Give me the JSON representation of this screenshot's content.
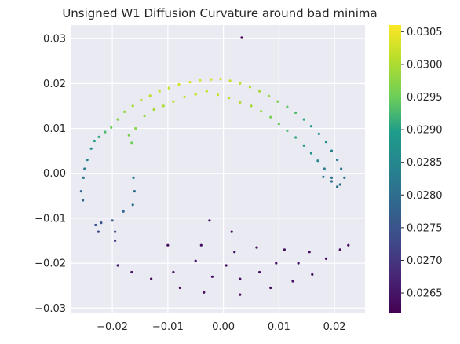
{
  "chart_data": {
    "type": "scatter",
    "title": "Unsigned W1 Diffusion Curvature around bad minima",
    "xlabel": "",
    "ylabel": "",
    "xlim": [
      -0.0275,
      0.0255
    ],
    "ylim": [
      -0.031,
      0.033
    ],
    "x_ticks": [
      -0.02,
      -0.01,
      0.0,
      0.01,
      0.02
    ],
    "x_tick_labels": [
      "−0.02",
      "−0.01",
      "0.00",
      "0.01",
      "0.02"
    ],
    "y_ticks": [
      -0.03,
      -0.02,
      -0.01,
      0.0,
      0.01,
      0.02,
      0.03
    ],
    "y_tick_labels": [
      "−0.03",
      "−0.02",
      "−0.01",
      "0.00",
      "0.01",
      "0.02",
      "0.03"
    ],
    "grid": true,
    "background": "#eaeaf2",
    "colormap": "viridis",
    "colorbar": {
      "range": [
        0.0262,
        0.0306
      ],
      "ticks": [
        0.0265,
        0.027,
        0.0275,
        0.028,
        0.0285,
        0.029,
        0.0295,
        0.03,
        0.0305
      ],
      "tick_labels": [
        "0.0265",
        "0.0270",
        "0.0275",
        "0.0280",
        "0.0285",
        "0.0290",
        "0.0295",
        "0.0300",
        "0.0305"
      ]
    },
    "points": [
      [
        -0.0238,
        0.0055,
        0.0285
      ],
      [
        -0.0232,
        0.0072,
        0.0289
      ],
      [
        -0.0224,
        0.0081,
        0.0291
      ],
      [
        -0.0213,
        0.0092,
        0.0293
      ],
      [
        -0.0202,
        0.0102,
        0.0295
      ],
      [
        -0.019,
        0.012,
        0.0297
      ],
      [
        -0.0178,
        0.0137,
        0.0298
      ],
      [
        -0.0163,
        0.015,
        0.0299
      ],
      [
        -0.0148,
        0.0163,
        0.03
      ],
      [
        -0.0132,
        0.0173,
        0.0301
      ],
      [
        -0.0115,
        0.0183,
        0.0302
      ],
      [
        -0.0098,
        0.019,
        0.0302
      ],
      [
        -0.008,
        0.0198,
        0.0303
      ],
      [
        -0.006,
        0.0203,
        0.0303
      ],
      [
        -0.0042,
        0.0207,
        0.0303
      ],
      [
        -0.0022,
        0.0209,
        0.0303
      ],
      [
        -0.0005,
        0.021,
        0.0303
      ],
      [
        0.0012,
        0.0206,
        0.0302
      ],
      [
        0.003,
        0.02,
        0.0301
      ],
      [
        0.0048,
        0.0192,
        0.03
      ],
      [
        0.0065,
        0.0183,
        0.0299
      ],
      [
        0.0082,
        0.0172,
        0.0298
      ],
      [
        0.0098,
        0.016,
        0.0296
      ],
      [
        0.0115,
        0.0148,
        0.0294
      ],
      [
        0.013,
        0.0135,
        0.0293
      ],
      [
        0.0145,
        0.012,
        0.0291
      ],
      [
        0.0158,
        0.0105,
        0.0289
      ],
      [
        0.0172,
        0.0088,
        0.0287
      ],
      [
        0.0185,
        0.007,
        0.0286
      ],
      [
        0.0195,
        0.005,
        0.0284
      ],
      [
        0.0205,
        0.003,
        0.0283
      ],
      [
        0.0212,
        0.001,
        0.0282
      ],
      [
        0.0218,
        -0.001,
        0.0281
      ],
      [
        0.021,
        -0.0025,
        0.028
      ],
      [
        0.0195,
        -0.0018,
        0.028
      ],
      [
        0.018,
        -0.0008,
        0.0281
      ],
      [
        -0.017,
        0.0085,
        0.0296
      ],
      [
        -0.0165,
        0.0068,
        0.0295
      ],
      [
        -0.0158,
        0.01,
        0.0297
      ],
      [
        -0.0142,
        0.0128,
        0.0298
      ],
      [
        -0.0125,
        0.0142,
        0.0299
      ],
      [
        -0.0108,
        0.015,
        0.03
      ],
      [
        -0.009,
        0.016,
        0.0301
      ],
      [
        -0.007,
        0.017,
        0.0302
      ],
      [
        -0.005,
        0.0176,
        0.0302
      ],
      [
        -0.003,
        0.0183,
        0.0302
      ],
      [
        -0.001,
        0.0175,
        0.0302
      ],
      [
        0.001,
        0.0168,
        0.0301
      ],
      [
        0.003,
        0.0158,
        0.03
      ],
      [
        0.005,
        0.015,
        0.0299
      ],
      [
        0.0068,
        0.0138,
        0.0298
      ],
      [
        0.0085,
        0.0125,
        0.0296
      ],
      [
        0.01,
        0.011,
        0.0295
      ],
      [
        0.0115,
        0.0095,
        0.0293
      ],
      [
        0.013,
        0.008,
        0.0291
      ],
      [
        0.0145,
        0.0062,
        0.0289
      ],
      [
        0.0158,
        0.0045,
        0.0287
      ],
      [
        0.017,
        0.0028,
        0.0285
      ],
      [
        0.0182,
        0.001,
        0.0283
      ],
      [
        0.0195,
        -0.001,
        0.0281
      ],
      [
        0.0205,
        -0.003,
        0.028
      ],
      [
        -0.025,
        0.001,
        0.0283
      ],
      [
        -0.0245,
        0.003,
        0.0284
      ],
      [
        -0.0252,
        -0.001,
        0.0282
      ],
      [
        -0.0256,
        -0.004,
        0.0279
      ],
      [
        -0.0253,
        -0.006,
        0.0278
      ],
      [
        -0.0162,
        -0.001,
        0.0283
      ],
      [
        -0.016,
        -0.004,
        0.028
      ],
      [
        -0.0163,
        -0.007,
        0.0279
      ],
      [
        -0.018,
        -0.0085,
        0.0278
      ],
      [
        -0.02,
        -0.0105,
        0.0276
      ],
      [
        -0.022,
        -0.011,
        0.0275
      ],
      [
        -0.023,
        -0.0115,
        0.0274
      ],
      [
        -0.0225,
        -0.013,
        0.0273
      ],
      [
        -0.0195,
        -0.013,
        0.0274
      ],
      [
        -0.0195,
        -0.015,
        0.0272
      ],
      [
        0.0033,
        0.0302,
        0.0262
      ],
      [
        -0.019,
        -0.0205,
        0.0265
      ],
      [
        -0.0165,
        -0.022,
        0.0265
      ],
      [
        -0.013,
        -0.0235,
        0.0264
      ],
      [
        -0.01,
        -0.016,
        0.0264
      ],
      [
        -0.009,
        -0.022,
        0.0264
      ],
      [
        -0.0078,
        -0.0255,
        0.0264
      ],
      [
        -0.005,
        -0.0195,
        0.0264
      ],
      [
        -0.004,
        -0.016,
        0.0264
      ],
      [
        -0.0035,
        -0.0265,
        0.0264
      ],
      [
        -0.0025,
        -0.0105,
        0.0264
      ],
      [
        -0.002,
        -0.023,
        0.0264
      ],
      [
        0.0005,
        -0.0205,
        0.0264
      ],
      [
        0.0015,
        -0.013,
        0.0264
      ],
      [
        0.002,
        -0.0175,
        0.0264
      ],
      [
        0.003,
        -0.0235,
        0.0264
      ],
      [
        0.003,
        -0.027,
        0.0264
      ],
      [
        0.006,
        -0.0165,
        0.0264
      ],
      [
        0.0065,
        -0.022,
        0.0264
      ],
      [
        0.0085,
        -0.0255,
        0.0264
      ],
      [
        0.0095,
        -0.02,
        0.0264
      ],
      [
        0.011,
        -0.017,
        0.0264
      ],
      [
        0.0125,
        -0.024,
        0.0264
      ],
      [
        0.0135,
        -0.02,
        0.0264
      ],
      [
        0.0155,
        -0.0175,
        0.0264
      ],
      [
        0.016,
        -0.0225,
        0.0264
      ],
      [
        0.0185,
        -0.019,
        0.0264
      ],
      [
        0.021,
        -0.017,
        0.0264
      ],
      [
        0.0225,
        -0.016,
        0.0264
      ]
    ]
  }
}
